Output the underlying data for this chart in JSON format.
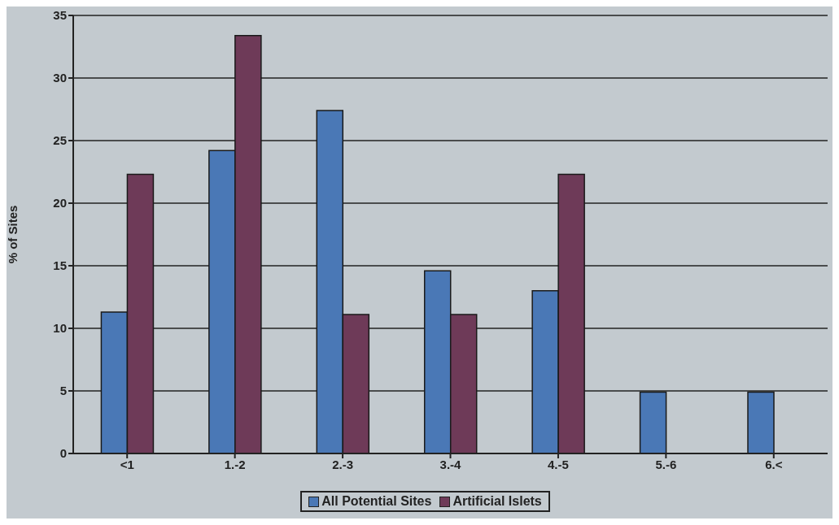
{
  "chart_data": {
    "type": "bar",
    "ylabel": "% of Sites",
    "categories": [
      "<1",
      "1.-2",
      "2.-3",
      "3.-4",
      "4.-5",
      "5.-6",
      "6.<"
    ],
    "series": [
      {
        "name": "All Potential Sites",
        "color": "#4a78b6",
        "values": [
          11.3,
          24.2,
          27.4,
          14.6,
          13.0,
          4.9,
          4.9
        ]
      },
      {
        "name": "Artificial Islets",
        "color": "#6e3a58",
        "values": [
          22.3,
          33.4,
          11.1,
          11.1,
          22.3,
          0,
          0
        ]
      }
    ],
    "ylim": [
      0,
      35
    ],
    "yticks": [
      0,
      5,
      10,
      15,
      20,
      25,
      30,
      35
    ],
    "grid": "y",
    "legend": "bottom"
  }
}
